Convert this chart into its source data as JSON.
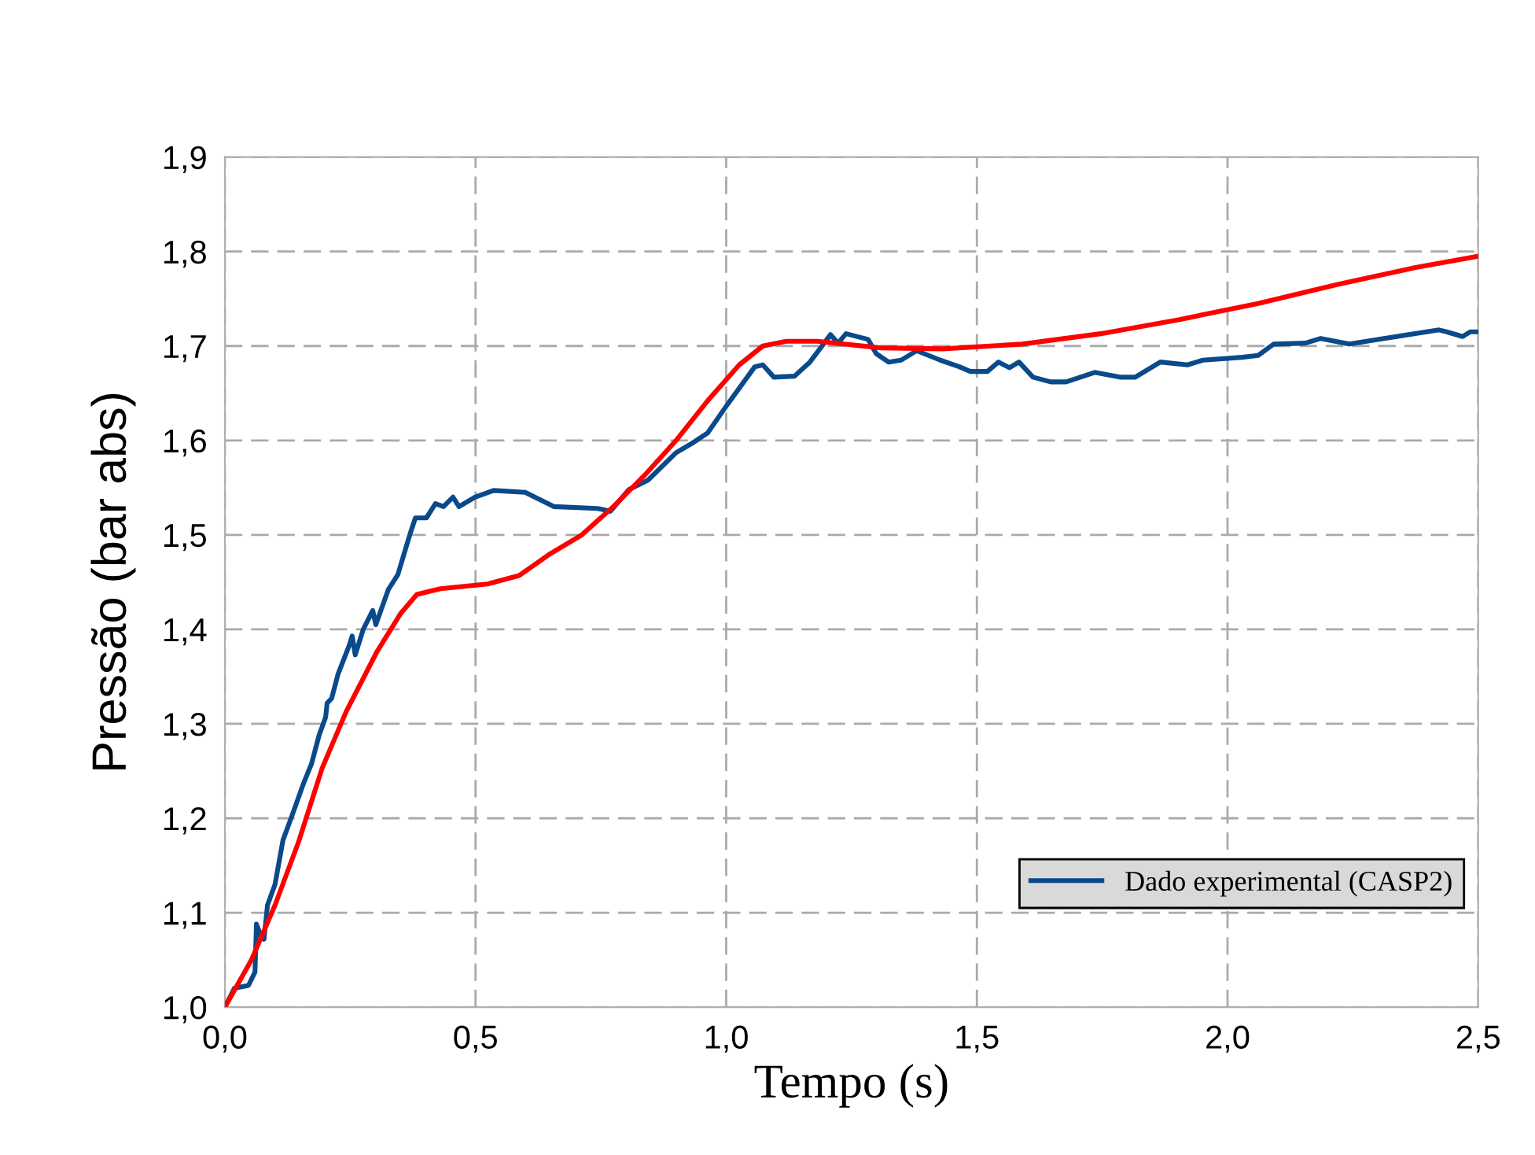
{
  "chart_data": {
    "type": "line",
    "xlabel": "Tempo (s)",
    "ylabel": "Pressão (bar abs)",
    "xlim": [
      0,
      2.5
    ],
    "ylim": [
      1.0,
      1.9
    ],
    "xticks": [
      {
        "value": 0,
        "label": "0,0"
      },
      {
        "value": 0.5,
        "label": "0,5"
      },
      {
        "value": 1.0,
        "label": "1,0"
      },
      {
        "value": 1.5,
        "label": "1,5"
      },
      {
        "value": 2.0,
        "label": "2,0"
      },
      {
        "value": 2.5,
        "label": "2,5"
      }
    ],
    "yticks": [
      {
        "value": 1.0,
        "label": "1,0"
      },
      {
        "value": 1.1,
        "label": "1,1"
      },
      {
        "value": 1.2,
        "label": "1,2"
      },
      {
        "value": 1.3,
        "label": "1,3"
      },
      {
        "value": 1.4,
        "label": "1,4"
      },
      {
        "value": 1.5,
        "label": "1,5"
      },
      {
        "value": 1.6,
        "label": "1,6"
      },
      {
        "value": 1.7,
        "label": "1,7"
      },
      {
        "value": 1.8,
        "label": "1,8"
      },
      {
        "value": 1.9,
        "label": "1,9"
      }
    ],
    "grid": true,
    "legend": "bottom right",
    "marker": "none",
    "line_style": "solid",
    "series": [
      {
        "name": "Dado experimental (CASP2)",
        "color": "#0a4a8a",
        "x": [
          0,
          0.019,
          0.047,
          0.06,
          0.063,
          0.072,
          0.078,
          0.085,
          0.1,
          0.116,
          0.132,
          0.157,
          0.173,
          0.188,
          0.201,
          0.204,
          0.213,
          0.226,
          0.248,
          0.254,
          0.26,
          0.276,
          0.295,
          0.301,
          0.326,
          0.345,
          0.37,
          0.38,
          0.402,
          0.42,
          0.436,
          0.455,
          0.467,
          0.499,
          0.536,
          0.599,
          0.656,
          0.743,
          0.769,
          0.806,
          0.844,
          0.9,
          0.932,
          0.963,
          1.001,
          1.057,
          1.073,
          1.095,
          1.136,
          1.167,
          1.208,
          1.223,
          1.239,
          1.283,
          1.299,
          1.324,
          1.349,
          1.38,
          1.427,
          1.465,
          1.487,
          1.521,
          1.543,
          1.565,
          1.584,
          1.612,
          1.647,
          1.678,
          1.735,
          1.785,
          1.816,
          1.866,
          1.92,
          1.951,
          2.029,
          2.061,
          2.092,
          2.155,
          2.186,
          2.243,
          2.312,
          2.422,
          2.437,
          2.469,
          2.484,
          2.5
        ],
        "values": [
          1.0,
          1.02,
          1.023,
          1.037,
          1.088,
          1.075,
          1.072,
          1.108,
          1.13,
          1.177,
          1.2,
          1.237,
          1.258,
          1.288,
          1.307,
          1.322,
          1.327,
          1.353,
          1.383,
          1.393,
          1.373,
          1.4,
          1.42,
          1.405,
          1.442,
          1.458,
          1.502,
          1.518,
          1.518,
          1.533,
          1.53,
          1.54,
          1.53,
          1.54,
          1.547,
          1.545,
          1.53,
          1.528,
          1.525,
          1.548,
          1.558,
          1.587,
          1.597,
          1.608,
          1.637,
          1.678,
          1.68,
          1.667,
          1.668,
          1.683,
          1.712,
          1.703,
          1.713,
          1.707,
          1.692,
          1.683,
          1.685,
          1.695,
          1.685,
          1.678,
          1.673,
          1.673,
          1.683,
          1.677,
          1.683,
          1.667,
          1.662,
          1.662,
          1.672,
          1.667,
          1.667,
          1.683,
          1.68,
          1.685,
          1.688,
          1.69,
          1.702,
          1.703,
          1.708,
          1.702,
          1.708,
          1.717,
          1.715,
          1.71,
          1.715,
          1.715
        ]
      },
      {
        "color": "#ff0000",
        "x": [
          0,
          0.053,
          0.1,
          0.147,
          0.194,
          0.242,
          0.304,
          0.351,
          0.383,
          0.43,
          0.524,
          0.587,
          0.649,
          0.712,
          0.775,
          0.837,
          0.9,
          0.963,
          1.026,
          1.073,
          1.12,
          1.182,
          1.308,
          1.433,
          1.59,
          1.747,
          1.904,
          2.061,
          2.218,
          2.375,
          2.5
        ],
        "values": [
          1.0,
          1.05,
          1.108,
          1.175,
          1.253,
          1.313,
          1.377,
          1.417,
          1.437,
          1.443,
          1.448,
          1.457,
          1.48,
          1.5,
          1.53,
          1.563,
          1.6,
          1.642,
          1.68,
          1.7,
          1.705,
          1.705,
          1.698,
          1.697,
          1.702,
          1.713,
          1.728,
          1.745,
          1.765,
          1.783,
          1.795
        ]
      }
    ]
  }
}
